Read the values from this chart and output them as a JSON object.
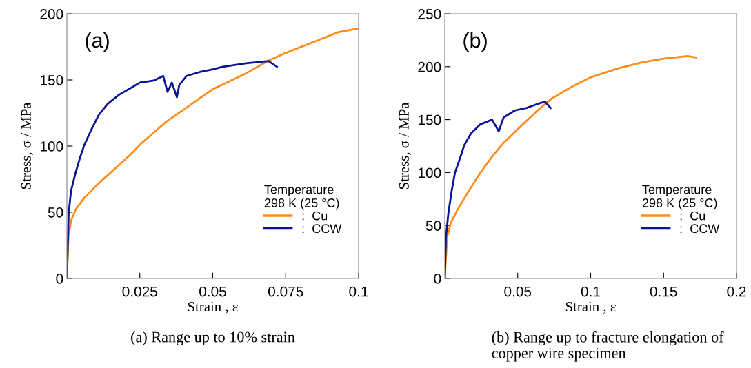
{
  "chart_data": [
    {
      "type": "line",
      "xlabel": "Strain , ε",
      "ylabel": "Stress, σ / MPa",
      "legend_title": "Temperature\n298 K (25 °C)",
      "legend": "bottom right",
      "grid": false,
      "marker": "none",
      "line_style": "solid",
      "annotations": [
        "(a)",
        "(a) Range up to 10% strain"
      ],
      "xlim": [
        0,
        0.1
      ],
      "xticks": [
        0.025,
        0.05,
        0.075,
        0.1
      ],
      "ylim": [
        0,
        200
      ],
      "yticks": [
        0,
        50,
        100,
        150,
        200
      ],
      "series": [
        {
          "name": ":  Cu",
          "color": "#ff8c1a",
          "x": [
            0,
            0.0005,
            0.0014,
            0.003,
            0.006,
            0.01,
            0.014,
            0.022,
            0.025,
            0.0338,
            0.0416,
            0.05,
            0.0614,
            0.0691,
            0.075,
            0.085,
            0.0929,
            0.1
          ],
          "values": [
            0,
            31,
            43.5,
            52,
            61,
            70,
            78,
            94,
            101,
            118,
            130,
            143,
            155,
            164.6,
            170.4,
            179,
            186,
            189
          ]
        },
        {
          "name": ":  CCW",
          "color": "#0a1496",
          "x": [
            0,
            0.0006,
            0.0014,
            0.003,
            0.0046,
            0.006,
            0.0085,
            0.0109,
            0.014,
            0.018,
            0.022,
            0.025,
            0.0298,
            0.033,
            0.0345,
            0.036,
            0.0377,
            0.0385,
            0.041,
            0.0456,
            0.05,
            0.0535,
            0.0614,
            0.0691,
            0.072
          ],
          "values": [
            0,
            48.7,
            66,
            80,
            92,
            101,
            113,
            123.5,
            132,
            139,
            144,
            148,
            149.5,
            153,
            141,
            148,
            137,
            146,
            153,
            156,
            158,
            160,
            162.6,
            164.3,
            160
          ]
        }
      ]
    },
    {
      "type": "line",
      "xlabel": "Strain , ε",
      "ylabel": "Stress, σ / MPa",
      "legend_title": "Temperature\n298 K (25 °C)",
      "legend": "bottom right",
      "grid": false,
      "marker": "none",
      "line_style": "solid",
      "annotations": [
        "(b)",
        "(b) Range up to fracture elongation of\ncopper wire specimen"
      ],
      "xlim": [
        0,
        0.2
      ],
      "xticks": [
        0.05,
        0.1,
        0.15,
        0.2
      ],
      "ylim": [
        0,
        250
      ],
      "yticks": [
        0,
        50,
        100,
        150,
        200,
        250
      ],
      "series": [
        {
          "name": ":  Cu",
          "color": "#ff8c1a",
          "x": [
            0,
            0.0016,
            0.004,
            0.0087,
            0.0166,
            0.0245,
            0.0324,
            0.0403,
            0.05,
            0.0639,
            0.0734,
            0.0876,
            0.1,
            0.119,
            0.135,
            0.15,
            0.1665,
            0.172
          ],
          "values": [
            0,
            39,
            52,
            65,
            83,
            100,
            115,
            128,
            141,
            159,
            170,
            181.5,
            190,
            198.5,
            204,
            207.6,
            210,
            208.7
          ]
        },
        {
          "name": ":  CCW",
          "color": "#0a1496",
          "x": [
            0,
            0.0008,
            0.0024,
            0.0047,
            0.007,
            0.0103,
            0.0134,
            0.018,
            0.0245,
            0.0324,
            0.037,
            0.0403,
            0.0481,
            0.056,
            0.064,
            0.0687,
            0.0726
          ],
          "values": [
            0,
            39,
            61,
            82.6,
            100,
            113,
            126,
            137,
            145.6,
            150,
            139,
            152,
            158.7,
            161,
            165,
            167,
            161
          ]
        }
      ]
    }
  ]
}
